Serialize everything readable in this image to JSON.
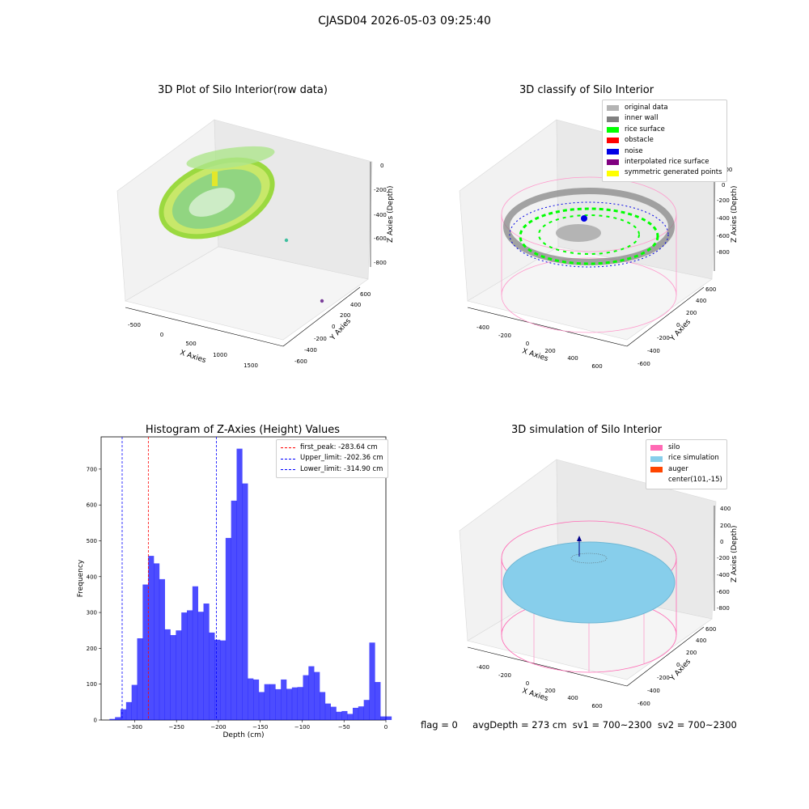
{
  "suptitle": "CJASD04 2026-05-03 09:25:40",
  "plots": {
    "p1": {
      "title": "3D Plot of Silo Interior(row data)",
      "xlabel": "X Axies",
      "ylabel": "Y Axies",
      "zlabel": "Z Axies (Depth)",
      "xticks": [
        "-500",
        "0",
        "500",
        "1000",
        "1500"
      ],
      "yticks": [
        "600",
        "400",
        "200",
        "0",
        "-200",
        "-400",
        "-600"
      ],
      "zticks": [
        "0",
        "-200",
        "-400",
        "-600",
        "-800"
      ]
    },
    "p2": {
      "title": "3D classify of Silo Interior",
      "xlabel": "X Axies",
      "ylabel": "Y Axies",
      "zlabel": "Z Axies (Depth)",
      "xticks": [
        "-400",
        "-200",
        "0",
        "200",
        "400",
        "600"
      ],
      "yticks": [
        "600",
        "400",
        "200",
        "0",
        "-200",
        "-400",
        "-600"
      ],
      "zticks": [
        "200",
        "0",
        "-200",
        "-400",
        "-600",
        "-800"
      ],
      "legend": [
        {
          "label": "original data",
          "color": "#b4b4b4"
        },
        {
          "label": "inner wall",
          "color": "#808080"
        },
        {
          "label": "rice surface",
          "color": "#00ff00"
        },
        {
          "label": "obstacle",
          "color": "#ff0000"
        },
        {
          "label": "noise",
          "color": "#0000e6"
        },
        {
          "label": "interpolated rice surface",
          "color": "#800080"
        },
        {
          "label": "symmetric generated points",
          "color": "#ffff00"
        }
      ]
    },
    "p4": {
      "title": "3D simulation of Silo Interior",
      "xlabel": "X Axies",
      "ylabel": "Y Axies",
      "zlabel": "Z Axies (Depth)",
      "xticks": [
        "-400",
        "-200",
        "0",
        "200",
        "400",
        "600"
      ],
      "yticks": [
        "600",
        "400",
        "200",
        "0",
        "-200",
        "-400",
        "-600"
      ],
      "zticks": [
        "400",
        "200",
        "0",
        "-200",
        "-400",
        "-600",
        "-800"
      ],
      "legend": [
        {
          "label": "silo",
          "color": "#ff69b4"
        },
        {
          "label": "rice simulation",
          "color": "#87ceeb"
        },
        {
          "label": "auger",
          "color": "#ff4500"
        },
        {
          "label": "center(101,-15)",
          "color": ""
        }
      ]
    }
  },
  "chart_data": {
    "type": "bar",
    "title": "Histogram of Z-Axies (Height) Values",
    "xlabel": "Depth (cm)",
    "ylabel": "Frequency",
    "xlim": [
      -340,
      0
    ],
    "ylim": [
      0,
      790
    ],
    "xticks": [
      -300,
      -250,
      -200,
      -150,
      -100,
      -50,
      0
    ],
    "yticks": [
      0,
      100,
      200,
      300,
      400,
      500,
      600,
      700
    ],
    "bin_width": 6.6,
    "bin_start": -330,
    "values": [
      3,
      8,
      30,
      50,
      98,
      228,
      378,
      458,
      437,
      393,
      253,
      237,
      250,
      300,
      306,
      373,
      302,
      325,
      244,
      224,
      222,
      508,
      612,
      757,
      660,
      116,
      113,
      78,
      100,
      100,
      86,
      113,
      87,
      91,
      92,
      125,
      150,
      134,
      78,
      46,
      37,
      23,
      25,
      17,
      34,
      38,
      56,
      216,
      106,
      10,
      10
    ],
    "color": "#0000ff",
    "vlines": [
      {
        "x": -283.64,
        "label": "first_peak: -283.64 cm",
        "color": "#ff0000"
      },
      {
        "x": -202.36,
        "label": "Upper_limit: -202.36 cm",
        "color": "#0000ff"
      },
      {
        "x": -314.9,
        "label": "Lower_limit: -314.90 cm",
        "color": "#0000ff"
      }
    ],
    "legend_position": "top-right"
  },
  "status": {
    "flag": "flag = 0",
    "avg": "avgDepth = 273 cm",
    "sv1": "sv1 = 700~2300",
    "sv2": "sv2 = 700~2300"
  }
}
